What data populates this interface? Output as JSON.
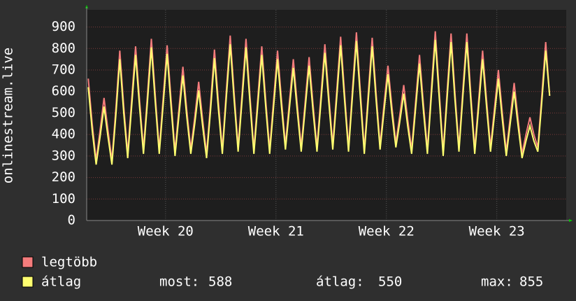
{
  "chart_data": {
    "type": "line",
    "y_label": "onlinestream.live",
    "x": [
      0,
      0.25,
      0.5,
      0.75,
      1,
      1.25,
      1.5,
      1.75,
      2,
      2.25,
      2.5,
      2.75,
      3,
      3.25,
      3.5,
      3.75,
      4,
      4.25,
      4.5,
      4.75,
      5,
      5.25,
      5.5,
      5.75,
      6,
      6.25,
      6.5,
      6.75,
      7,
      7.25,
      7.5,
      7.75,
      8,
      8.25,
      8.5,
      8.75,
      9,
      9.25,
      9.5,
      9.75,
      10,
      10.25,
      10.5,
      10.75,
      11,
      11.25,
      11.5,
      11.75,
      12,
      12.25,
      12.5,
      12.75,
      13,
      13.25,
      13.5,
      13.75,
      14,
      14.25,
      14.5,
      14.75,
      15,
      15.25,
      15.5,
      15.75,
      16,
      16.25,
      16.5,
      16.75,
      17,
      17.25,
      17.5,
      17.75,
      18,
      18.25,
      18.5,
      18.75,
      19,
      19.25,
      19.5,
      19.75,
      20,
      20.25,
      20.5,
      20.75,
      21,
      21.25,
      21.5,
      21.75,
      22,
      22.25,
      22.5,
      22.75,
      23,
      23.25,
      23.5,
      23.75,
      24,
      24.25,
      24.5,
      24.75,
      25,
      25.25,
      25.5,
      25.75,
      26,
      26.25,
      26.5,
      26.75,
      27,
      27.25,
      27.5,
      27.75,
      28,
      28.25,
      28.5,
      28.75,
      29,
      29.25
    ],
    "series": [
      {
        "name": "legtöbb",
        "color": "#f47c7c",
        "values": [
          660,
          450,
          280,
          420,
          570,
          420,
          280,
          520,
          790,
          530,
          310,
          560,
          810,
          560,
          330,
          580,
          845,
          580,
          330,
          570,
          815,
          560,
          320,
          520,
          715,
          510,
          330,
          480,
          645,
          470,
          310,
          540,
          795,
          550,
          330,
          600,
          860,
          590,
          340,
          590,
          845,
          580,
          330,
          570,
          810,
          560,
          330,
          560,
          790,
          560,
          350,
          550,
          750,
          540,
          340,
          550,
          760,
          540,
          340,
          580,
          820,
          580,
          350,
          600,
          855,
          590,
          340,
          610,
          875,
          600,
          330,
          590,
          850,
          590,
          350,
          540,
          720,
          530,
          360,
          490,
          630,
          470,
          330,
          550,
          770,
          540,
          330,
          610,
          880,
          600,
          320,
          600,
          870,
          590,
          340,
          610,
          870,
          590,
          330,
          560,
          790,
          560,
          340,
          520,
          700,
          500,
          320,
          480,
          640,
          470,
          310,
          400,
          480,
          400,
          340,
          580,
          830,
          580
        ]
      },
      {
        "name": "átlag",
        "color": "#ffff70",
        "values": [
          620,
          420,
          260,
          390,
          530,
          390,
          260,
          490,
          750,
          500,
          290,
          530,
          770,
          530,
          310,
          550,
          805,
          550,
          310,
          540,
          775,
          530,
          300,
          490,
          675,
          480,
          310,
          450,
          605,
          440,
          290,
          510,
          755,
          520,
          310,
          570,
          820,
          560,
          320,
          560,
          805,
          550,
          310,
          540,
          770,
          530,
          310,
          530,
          750,
          530,
          330,
          520,
          710,
          510,
          320,
          520,
          720,
          510,
          320,
          550,
          780,
          550,
          330,
          570,
          815,
          560,
          320,
          580,
          835,
          570,
          310,
          560,
          810,
          560,
          330,
          510,
          680,
          500,
          340,
          460,
          590,
          440,
          310,
          520,
          730,
          510,
          310,
          580,
          840,
          570,
          300,
          570,
          830,
          560,
          320,
          580,
          830,
          560,
          310,
          530,
          750,
          530,
          320,
          490,
          660,
          470,
          300,
          450,
          600,
          440,
          290,
          370,
          440,
          370,
          320,
          550,
          790,
          580
        ]
      }
    ],
    "xlim": [
      -0.1,
      30.3
    ],
    "xticks": [
      {
        "value": 4.9,
        "label": "Week 20"
      },
      {
        "value": 11.9,
        "label": "Week 21"
      },
      {
        "value": 18.9,
        "label": "Week 22"
      },
      {
        "value": 25.9,
        "label": "Week 23"
      }
    ],
    "ylim": [
      0,
      980
    ],
    "yticks": [
      0,
      100,
      200,
      300,
      400,
      500,
      600,
      700,
      800,
      900
    ],
    "grid": true,
    "stats": [
      {
        "label": "most:",
        "value": 588
      },
      {
        "label": "átlag:",
        "value": 550
      },
      {
        "label": "max:",
        "value": 855
      }
    ]
  }
}
